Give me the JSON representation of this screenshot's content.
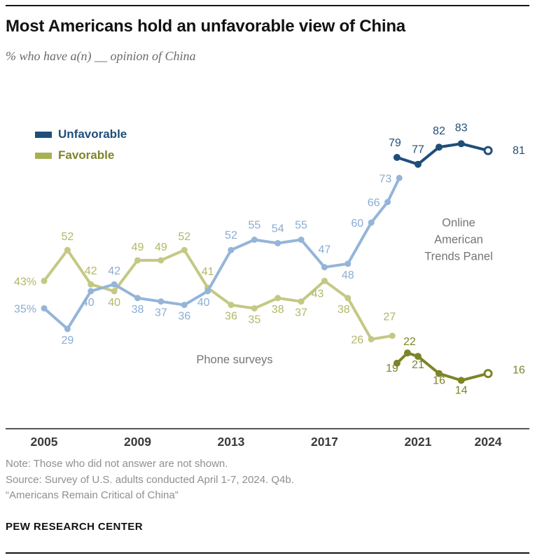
{
  "header": {
    "title": "Most Americans hold an unfavorable view of China",
    "subtitle": "% who have a(n) __ opinion of China"
  },
  "legend": {
    "unfavorable": {
      "label": "Unfavorable",
      "swatch_color": "#1f4e79",
      "text_color": "#1f4e79"
    },
    "favorable": {
      "label": "Favorable",
      "swatch_color": "#a8b055",
      "text_color": "#7d8428"
    }
  },
  "chart_data": {
    "type": "line",
    "title": "Most Americans hold an unfavorable view of China",
    "subtitle": "% who have a(n) __ opinion of China",
    "ylim": [
      0,
      100
    ],
    "xlim": [
      2005,
      2024
    ],
    "grid": false,
    "x_ticks": [
      {
        "year": 2005,
        "label": "2005"
      },
      {
        "year": 2009,
        "label": "2009"
      },
      {
        "year": 2013,
        "label": "2013"
      },
      {
        "year": 2017,
        "label": "2017"
      },
      {
        "year": 2021,
        "label": "2021"
      },
      {
        "year": 2024,
        "label": "2024"
      }
    ],
    "annotations": [
      {
        "id": "online-panel-note",
        "lines": [
          "Online",
          "American",
          "Trends Panel"
        ],
        "x": 2022.74,
        "y": 54
      },
      {
        "id": "phone-surveys-note",
        "lines": [
          "Phone surveys"
        ],
        "x": 2013.15,
        "y": 19
      }
    ],
    "series": [
      {
        "id": "favorable-phone",
        "name": "Favorable (phone surveys)",
        "color": "#c4c883",
        "label_color": "#b2b765",
        "dot_r": 4.5,
        "points": [
          {
            "x": 2005,
            "y": 43,
            "label": "43%",
            "pos": "left"
          },
          {
            "x": 2006,
            "y": 52,
            "label": "52",
            "pos": "above",
            "dy": -4
          },
          {
            "x": 2007,
            "y": 42,
            "label": "42",
            "pos": "above",
            "dy": -4
          },
          {
            "x": 2008,
            "y": 40,
            "label": "40",
            "pos": "below"
          },
          {
            "x": 2009,
            "y": 49,
            "label": "49",
            "pos": "above",
            "dy": -4
          },
          {
            "x": 2010,
            "y": 49,
            "label": "49",
            "pos": "above",
            "dy": -4
          },
          {
            "x": 2011,
            "y": 52,
            "label": "52",
            "pos": "above",
            "dy": -4
          },
          {
            "x": 2012,
            "y": 41,
            "label": "41",
            "pos": "above",
            "dy": -8
          },
          {
            "x": 2013,
            "y": 36,
            "label": "36",
            "pos": "below"
          },
          {
            "x": 2014,
            "y": 35,
            "label": "35",
            "pos": "below"
          },
          {
            "x": 2015,
            "y": 38,
            "label": "38",
            "pos": "below"
          },
          {
            "x": 2016,
            "y": 37,
            "label": "37",
            "pos": "below"
          },
          {
            "x": 2017,
            "y": 43,
            "label": "43",
            "pos": "below",
            "dx": -10,
            "dy": 2
          },
          {
            "x": 2018,
            "y": 38,
            "label": "38",
            "pos": "below",
            "dx": -6
          },
          {
            "x": 2019,
            "y": 26,
            "label": "26",
            "pos": "left"
          },
          {
            "x": 2019.9,
            "y": 27,
            "label": "27",
            "pos": "above",
            "dx": -4,
            "dy": -12
          }
        ]
      },
      {
        "id": "unfavorable-phone",
        "name": "Unfavorable (phone surveys)",
        "color": "#94b5d8",
        "label_color": "#8aadd3",
        "dot_r": 4.5,
        "points": [
          {
            "x": 2005,
            "y": 35,
            "label": "35%",
            "pos": "left"
          },
          {
            "x": 2006,
            "y": 29,
            "label": "29",
            "pos": "below"
          },
          {
            "x": 2007,
            "y": 40,
            "label": "40",
            "pos": "below",
            "dx": -4
          },
          {
            "x": 2008,
            "y": 42,
            "label": "42",
            "pos": "above",
            "dy": -4
          },
          {
            "x": 2009,
            "y": 38,
            "label": "38",
            "pos": "below"
          },
          {
            "x": 2010,
            "y": 37,
            "label": "37",
            "pos": "below"
          },
          {
            "x": 2011,
            "y": 36,
            "label": "36",
            "pos": "below"
          },
          {
            "x": 2012,
            "y": 40,
            "label": "40",
            "pos": "below",
            "dx": -6
          },
          {
            "x": 2013,
            "y": 52,
            "label": "52",
            "pos": "above",
            "dy": -6
          },
          {
            "x": 2014,
            "y": 55,
            "label": "55",
            "pos": "above",
            "dy": -6
          },
          {
            "x": 2015,
            "y": 54,
            "label": "54",
            "pos": "above",
            "dy": -6
          },
          {
            "x": 2016,
            "y": 55,
            "label": "55",
            "pos": "above",
            "dy": -6
          },
          {
            "x": 2017,
            "y": 47,
            "label": "47",
            "pos": "above",
            "dy": -10
          },
          {
            "x": 2018,
            "y": 48,
            "label": "48",
            "pos": "below"
          },
          {
            "x": 2019,
            "y": 60,
            "label": "60",
            "pos": "left"
          },
          {
            "x": 2019.7,
            "y": 66,
            "label": "66",
            "pos": "left"
          },
          {
            "x": 2020.2,
            "y": 73,
            "label": "73",
            "pos": "left"
          }
        ]
      },
      {
        "id": "favorable-atp",
        "name": "Favorable (Online American Trends Panel)",
        "color": "#7d8428",
        "label_color": "#7d8428",
        "dot_r": 5,
        "points": [
          {
            "x": 2020.1,
            "y": 19,
            "label": "19",
            "pos": "below",
            "dx": -7,
            "dy": -9
          },
          {
            "x": 2020.55,
            "y": 22,
            "label": "22",
            "pos": "above",
            "dx": 3,
            "dy": -1
          },
          {
            "x": 2021,
            "y": 21,
            "label": "21",
            "pos": "below",
            "dy": -4
          },
          {
            "x": 2021.9,
            "y": 16,
            "label": "16",
            "pos": "below",
            "dy": -6
          },
          {
            "x": 2022.85,
            "y": 14,
            "label": "14",
            "pos": "below",
            "dy": -2
          },
          {
            "x": 2024,
            "y": 16,
            "label": "16",
            "pos": "right",
            "dx": 20,
            "dy": -6,
            "marker": "ring"
          }
        ]
      },
      {
        "id": "unfavorable-atp",
        "name": "Unfavorable (Online American Trends Panel)",
        "color": "#1f4e79",
        "label_color": "#1f4e79",
        "dot_r": 5,
        "points": [
          {
            "x": 2020.1,
            "y": 79,
            "label": "79",
            "pos": "above",
            "dx": -3,
            "dy": -6
          },
          {
            "x": 2021,
            "y": 77,
            "label": "77",
            "pos": "above",
            "dy": -6
          },
          {
            "x": 2021.9,
            "y": 82,
            "label": "82",
            "pos": "above",
            "dy": -8
          },
          {
            "x": 2022.85,
            "y": 83,
            "label": "83",
            "pos": "above",
            "dy": -8
          },
          {
            "x": 2024,
            "y": 81,
            "label": "81",
            "pos": "right",
            "dx": 20,
            "dy": -1,
            "marker": "ring"
          }
        ]
      }
    ]
  },
  "notes": {
    "note": "Note: Those who did not answer are not shown.",
    "source": "Source: Survey of U.S. adults conducted April 1-7, 2024. Q4b.",
    "report_title": "“Americans Remain Critical of China”"
  },
  "footer": {
    "wordmark": "PEW RESEARCH CENTER"
  }
}
